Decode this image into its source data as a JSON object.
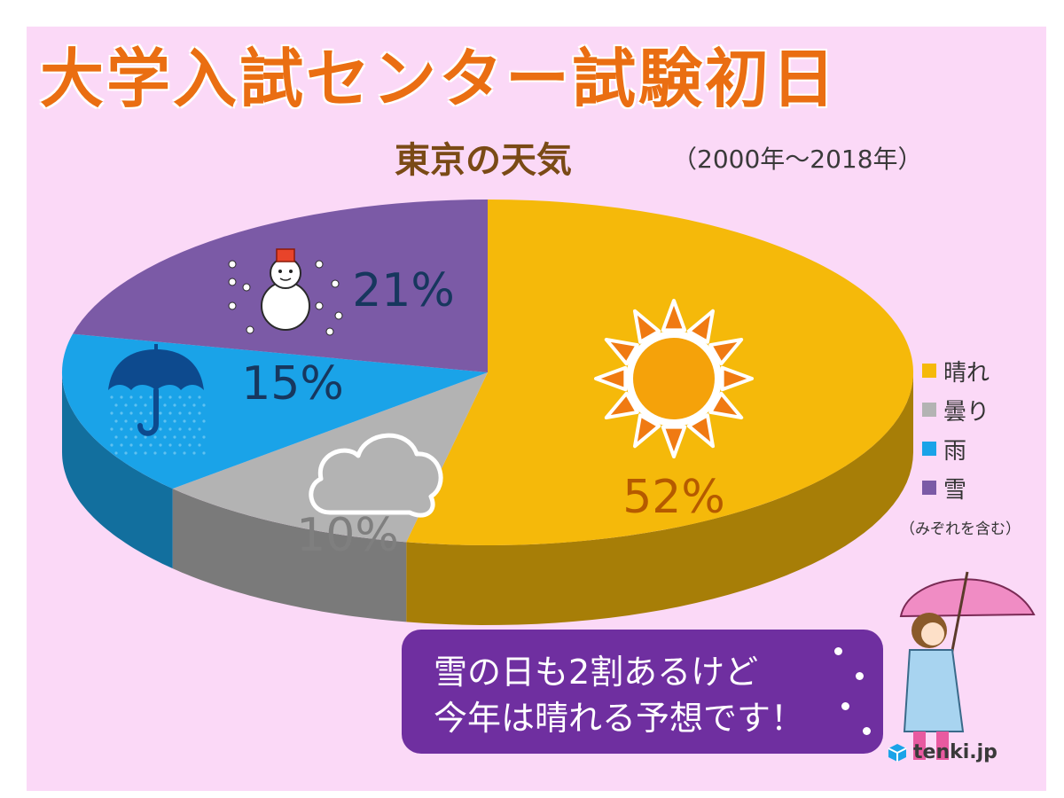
{
  "title": "大学入試センター試験初日",
  "subtitle": "東京の天気",
  "period": "（2000年～2018年）",
  "chart_data": {
    "type": "pie",
    "categories": [
      "晴れ",
      "曇り",
      "雨",
      "雪"
    ],
    "values": [
      52,
      10,
      15,
      21
    ],
    "labels": [
      "52%",
      "10%",
      "15%",
      "21%"
    ],
    "colors": [
      "#f5b90a",
      "#b3b3b3",
      "#1aa3e8",
      "#7b5aa6"
    ],
    "label_colors": [
      "#b55a00",
      "#7f7f7f",
      "#17375e",
      "#17375e"
    ],
    "icons": [
      "sun-icon",
      "cloud-icon",
      "umbrella-icon",
      "snowman-icon"
    ],
    "legend_position": "right",
    "three_d": true
  },
  "legend": {
    "items": [
      {
        "label": "晴れ",
        "color": "#f5b90a"
      },
      {
        "label": "曇り",
        "color": "#b3b3b3"
      },
      {
        "label": "雨",
        "color": "#1aa3e8"
      },
      {
        "label": "雪",
        "color": "#7b5aa6"
      }
    ],
    "note": "（みぞれを含む）"
  },
  "message": {
    "line1": "雪の日も2割あるけど",
    "line2": "今年は晴れる予想です！"
  },
  "logo": {
    "text": "tenki.jp"
  },
  "colors": {
    "background": "#fbd9f7",
    "title": "#ea6e12",
    "subtitle": "#7a4a16",
    "message_box": "#6f2fa0"
  }
}
